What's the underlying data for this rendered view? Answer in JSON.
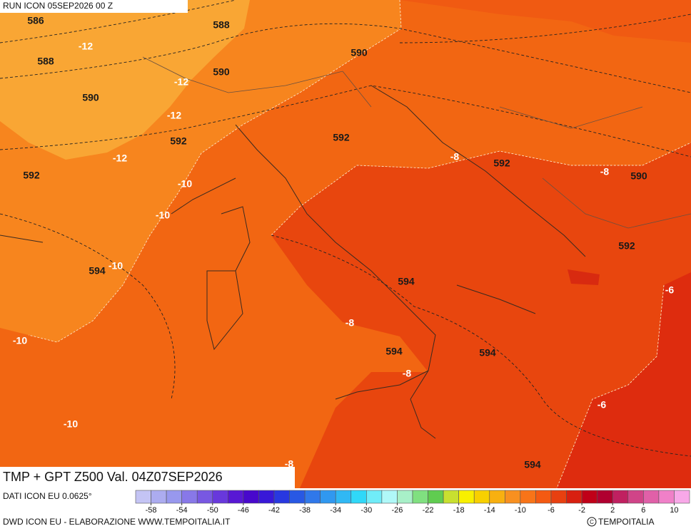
{
  "header": {
    "run": "RUN ICON 05SEP2026 00 Z"
  },
  "title": "TMP + GPT Z500 Val. 04Z07SEP2026",
  "source": "DATI ICON EU 0.0625°",
  "credit": "DWD ICON EU - ELABORAZIONE WWW.TEMPOITALIA.IT",
  "logo": "TEMPOITALIA",
  "gpt_labels": [
    586,
    588,
    590,
    588,
    590,
    590,
    592,
    592,
    592,
    592,
    590,
    592,
    594,
    594,
    594,
    594,
    594
  ],
  "temp_labels": [
    -12,
    -12,
    -12,
    -12,
    -10,
    -10,
    -10,
    -10,
    -10,
    -8,
    -8,
    -8,
    -8,
    -8,
    -6,
    -6
  ],
  "legend": {
    "range": [
      -60,
      12
    ],
    "colors": [
      "#c4c4f4",
      "#acacf0",
      "#9898ee",
      "#8878e8",
      "#7858e2",
      "#6838dc",
      "#5818d4",
      "#4808cc",
      "#3818d8",
      "#2838e0",
      "#2858e4",
      "#3078ea",
      "#3098f0",
      "#30b8f4",
      "#30d8f8",
      "#70ecf8",
      "#b0f8f8",
      "#a8f0c8",
      "#80e080",
      "#60cc50",
      "#c8e030",
      "#f8f000",
      "#f8d000",
      "#f8b010",
      "#f89020",
      "#f87418",
      "#f45a12",
      "#e84010",
      "#d82010",
      "#c00018",
      "#b00030",
      "#c02060",
      "#d04488",
      "#e060a8",
      "#f080c8",
      "#f8a8e8"
    ],
    "ticks": [
      -58,
      -54,
      -50,
      -46,
      -42,
      -38,
      -34,
      -30,
      -26,
      -22,
      -18,
      -14,
      -10,
      -6,
      -2,
      2,
      6,
      10
    ]
  }
}
